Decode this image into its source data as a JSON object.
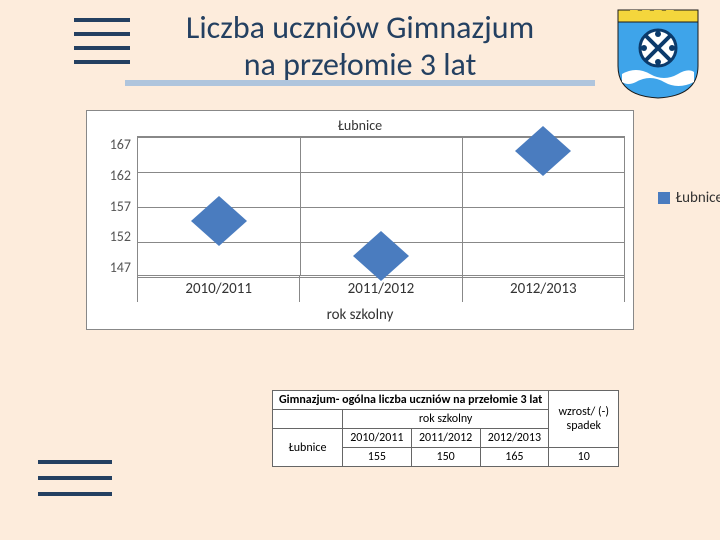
{
  "title_line1": "Liczba uczniów Gimnazjum",
  "title_line2": "na przełomie 3 lat",
  "chart": {
    "type": "line-with-markers",
    "title": "Łubnice",
    "series_name": "Łubnice",
    "series_color": "#4a7cbf",
    "marker": "diamond",
    "marker_size": 28,
    "categories": [
      "2010/2011",
      "2011/2012",
      "2012/2013"
    ],
    "values": [
      155,
      150,
      165
    ],
    "ylim": [
      147,
      167
    ],
    "yticks": [
      167,
      162,
      157,
      152,
      147
    ],
    "x_axis_title": "rok szkolny",
    "grid_color": "#888888",
    "background": "#ffffff"
  },
  "table": {
    "title": "Gimnazjum- ogólna liczba uczniów na przełomie 3 lat",
    "col_group": "rok szkolny",
    "change_header": "wzrost/ (-) spadek",
    "year_cols": [
      "2010/2011",
      "2011/2012",
      "2012/2013"
    ],
    "row_label": "Łubnice",
    "row_values": [
      155,
      150,
      165
    ],
    "change_value": 10
  },
  "colors": {
    "page_bg": "#fdecdc",
    "title_text": "#244061",
    "title_underline": "#afc5dd",
    "accent_bars": "#244061"
  }
}
